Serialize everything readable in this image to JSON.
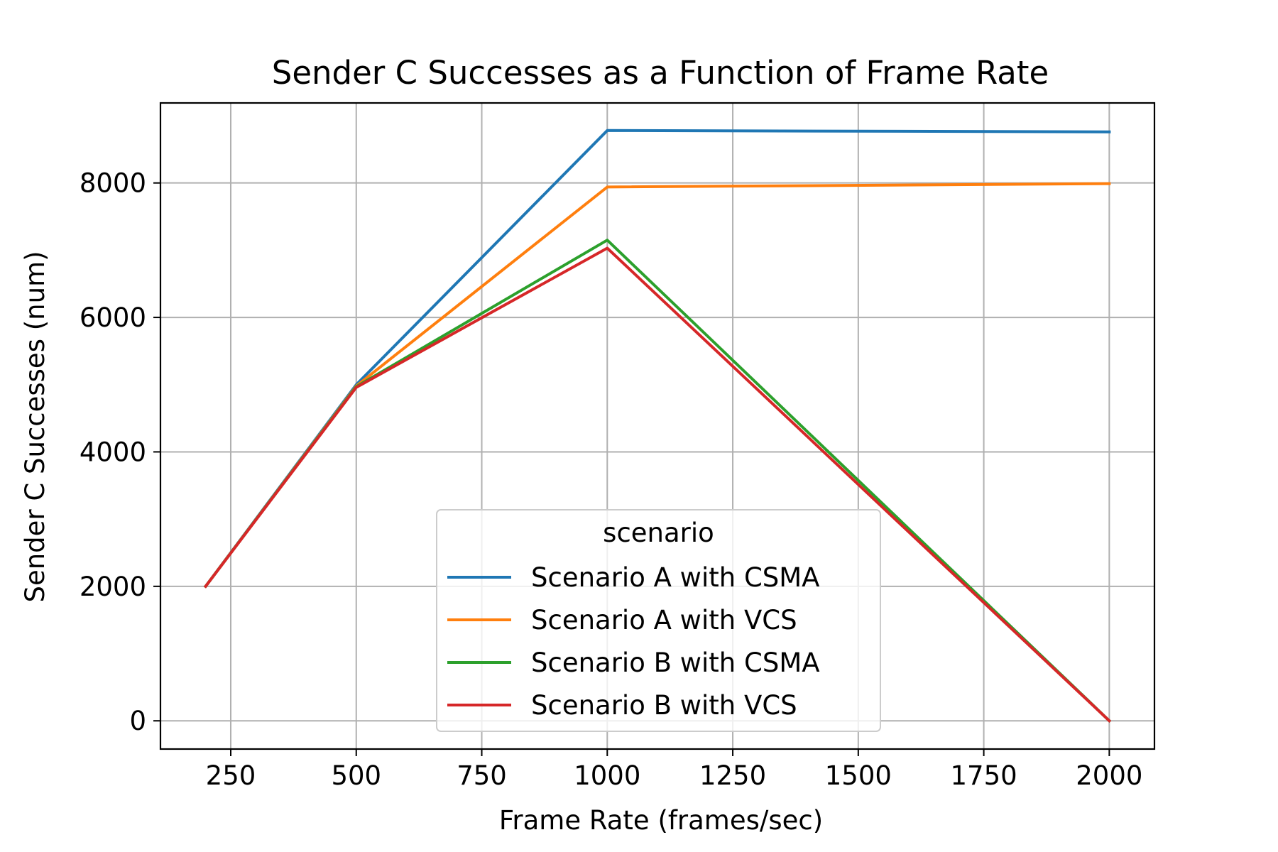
{
  "chart_data": {
    "type": "line",
    "title": "Sender C Successes as a Function of Frame Rate",
    "xlabel": "Frame Rate (frames/sec)",
    "ylabel": "Sender C Successes (num)",
    "x": [
      200,
      500,
      1000,
      2000
    ],
    "xlim": [
      110,
      2090
    ],
    "ylim": [
      -420,
      9190
    ],
    "xticks": [
      250,
      500,
      750,
      1000,
      1250,
      1500,
      1750,
      2000
    ],
    "yticks": [
      0,
      2000,
      4000,
      6000,
      8000
    ],
    "xtick_labels": [
      "250",
      "500",
      "750",
      "1000",
      "1250",
      "1500",
      "1750",
      "2000"
    ],
    "ytick_labels": [
      "0",
      "2000",
      "4000",
      "6000",
      "8000"
    ],
    "grid": true,
    "legend": {
      "title": "scenario",
      "placement": "lower-center"
    },
    "series": [
      {
        "name": "Scenario A with  CSMA",
        "color": "#1f77b4",
        "values": [
          2000,
          5000,
          8780,
          8760
        ]
      },
      {
        "name": "Scenario A with VCS",
        "color": "#ff7f0e",
        "values": [
          2000,
          4980,
          7940,
          7990
        ]
      },
      {
        "name": "Scenario B with CSMA",
        "color": "#2ca02c",
        "values": [
          2000,
          4970,
          7150,
          0
        ]
      },
      {
        "name": "Scenario B with VCS",
        "color": "#d62728",
        "values": [
          2000,
          4960,
          7030,
          0
        ]
      }
    ]
  }
}
